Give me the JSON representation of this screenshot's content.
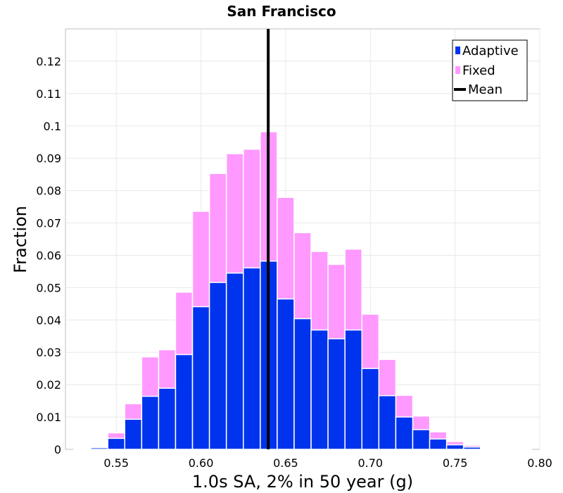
{
  "chart_data": {
    "type": "bar",
    "title": "San Francisco",
    "xlabel": "1.0s SA, 2% in 50 year (g)",
    "ylabel": "Fraction",
    "xlim": [
      0.52,
      0.8
    ],
    "ylim": [
      0,
      0.13
    ],
    "bin_width": 0.01,
    "x_ticks": [
      "0.55",
      "0.60",
      "0.65",
      "0.70",
      "0.75",
      "0.80"
    ],
    "x_tick_values": [
      0.55,
      0.6,
      0.65,
      0.7,
      0.75,
      0.8
    ],
    "y_ticks": [
      "0",
      "0.01",
      "0.02",
      "0.03",
      "0.04",
      "0.05",
      "0.06",
      "0.07",
      "0.08",
      "0.09",
      "0.1",
      "0.11",
      "0.12"
    ],
    "y_tick_values": [
      0,
      0.01,
      0.02,
      0.03,
      0.04,
      0.05,
      0.06,
      0.07,
      0.08,
      0.09,
      0.1,
      0.11,
      0.12
    ],
    "bin_starts": [
      0.525,
      0.535,
      0.545,
      0.555,
      0.565,
      0.575,
      0.585,
      0.595,
      0.605,
      0.615,
      0.625,
      0.635,
      0.645,
      0.655,
      0.665,
      0.675,
      0.685,
      0.695,
      0.705,
      0.715,
      0.725,
      0.735,
      0.745,
      0.755,
      0.765,
      0.775,
      0.785
    ],
    "series": [
      {
        "name": "Fixed",
        "color": "#ff99ff",
        "values": [
          0.0002,
          0.0007,
          0.0051,
          0.0141,
          0.0286,
          0.0308,
          0.0486,
          0.0736,
          0.0853,
          0.0914,
          0.0928,
          0.0982,
          0.0779,
          0.067,
          0.0612,
          0.0572,
          0.0619,
          0.0418,
          0.0278,
          0.0167,
          0.0103,
          0.0054,
          0.0024,
          0.0012,
          0.0005,
          0.0004,
          0.0001
        ]
      },
      {
        "name": "Adaptive",
        "color": "#0033ee",
        "values": [
          0.0001,
          0.0005,
          0.0034,
          0.0093,
          0.0164,
          0.0189,
          0.0293,
          0.0441,
          0.0516,
          0.0545,
          0.0561,
          0.0582,
          0.0465,
          0.0404,
          0.0369,
          0.0342,
          0.0369,
          0.025,
          0.0166,
          0.01,
          0.0061,
          0.0032,
          0.0014,
          0.0007,
          0.0003,
          0.0002,
          0.0001
        ]
      }
    ],
    "mean": {
      "name": "Mean",
      "x": 0.6397,
      "color": "#000000"
    },
    "legend": {
      "position": "top-right",
      "entries": [
        {
          "label": "Adaptive",
          "color": "#0033ee",
          "kind": "box"
        },
        {
          "label": "Fixed",
          "color": "#ff99ff",
          "kind": "box"
        },
        {
          "label": "Mean",
          "color": "#000000",
          "kind": "line"
        }
      ]
    },
    "grid": true
  }
}
